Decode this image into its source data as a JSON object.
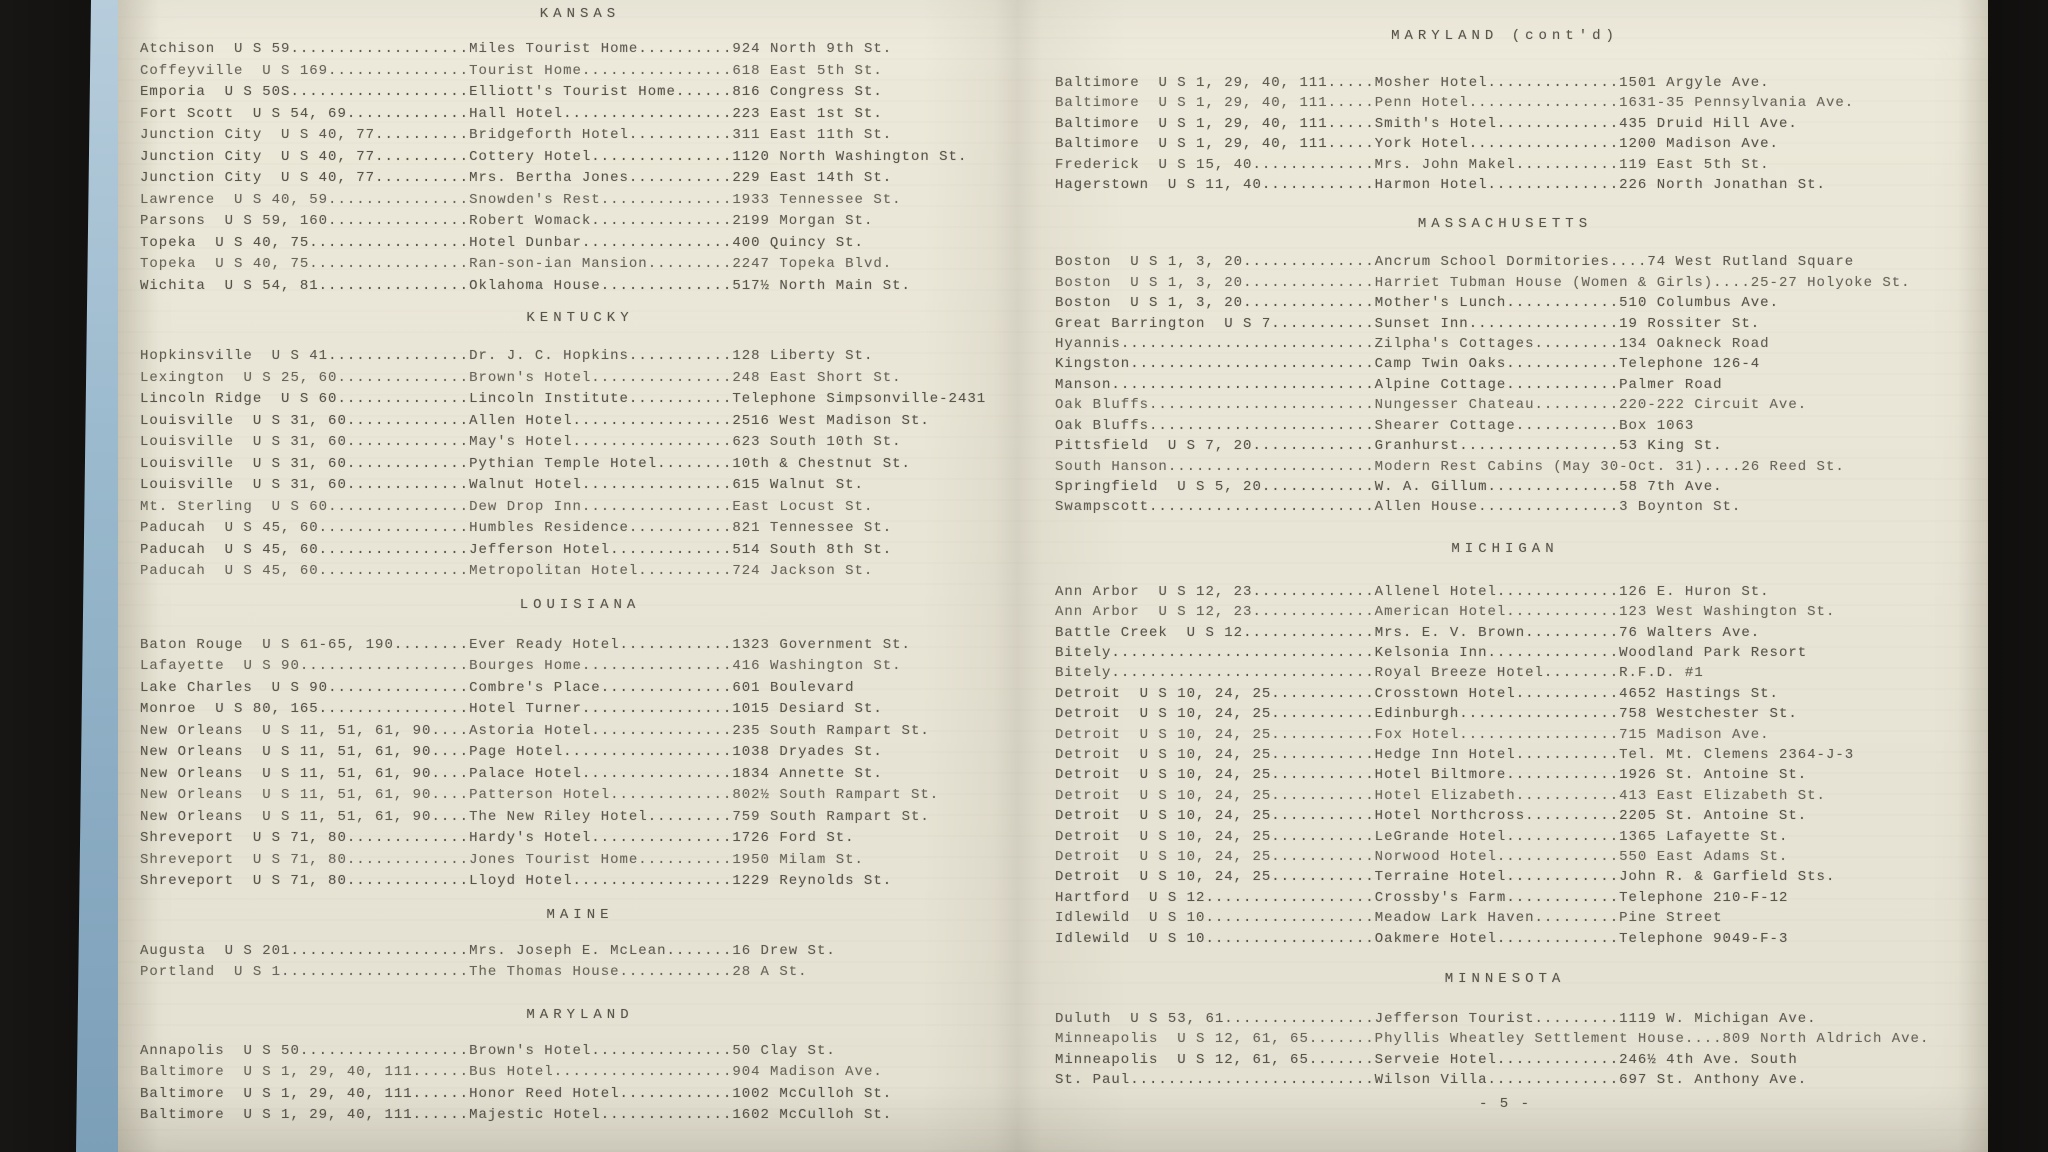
{
  "palette": {
    "background": "#0e0d0c",
    "paper": "#ece8d9",
    "ink": "#57544a",
    "book_edge_blue": "#8fb0c6"
  },
  "document": {
    "footer": "- 5 -",
    "left_page": {
      "sections": [
        {
          "title": "KANSAS",
          "entries": [
            {
              "city": "Atchison",
              "route": "U S 59",
              "name": "Miles Tourist Home",
              "address": "924 North 9th St."
            },
            {
              "city": "Coffeyville",
              "route": "U S 169",
              "name": "Tourist Home",
              "address": "618 East 5th St."
            },
            {
              "city": "Emporia",
              "route": "U S 50S",
              "name": "Elliott's Tourist Home",
              "address": "816 Congress St."
            },
            {
              "city": "Fort Scott",
              "route": "U S 54, 69",
              "name": "Hall Hotel",
              "address": "223 East 1st St."
            },
            {
              "city": "Junction City",
              "route": "U S 40, 77",
              "name": "Bridgeforth Hotel",
              "address": "311 East 11th St."
            },
            {
              "city": "Junction City",
              "route": "U S 40, 77",
              "name": "Cottery Hotel",
              "address": "1120 North Washington St."
            },
            {
              "city": "Junction City",
              "route": "U S 40, 77",
              "name": "Mrs. Bertha Jones",
              "address": "229 East 14th St."
            },
            {
              "city": "Lawrence",
              "route": "U S 40, 59",
              "name": "Snowden's Rest",
              "address": "1933 Tennessee St."
            },
            {
              "city": "Parsons",
              "route": "U S 59, 160",
              "name": "Robert Womack",
              "address": "2199 Morgan St."
            },
            {
              "city": "Topeka",
              "route": "U S 40, 75",
              "name": "Hotel Dunbar",
              "address": "400 Quincy St."
            },
            {
              "city": "Topeka",
              "route": "U S 40, 75",
              "name": "Ran-son-ian Mansion",
              "address": "2247 Topeka Blvd."
            },
            {
              "city": "Wichita",
              "route": "U S 54, 81",
              "name": "Oklahoma House",
              "address": "517½ North Main St."
            }
          ]
        },
        {
          "title": "KENTUCKY",
          "entries": [
            {
              "city": "Hopkinsville",
              "route": "U S 41",
              "name": "Dr. J. C. Hopkins",
              "address": "128 Liberty St."
            },
            {
              "city": "Lexington",
              "route": "U S 25, 60",
              "name": "Brown's Hotel",
              "address": "248 East Short St."
            },
            {
              "city": "Lincoln Ridge",
              "route": "U S 60",
              "name": "Lincoln Institute",
              "address": "Telephone Simpsonville-2431"
            },
            {
              "city": "Louisville",
              "route": "U S 31, 60",
              "name": "Allen Hotel",
              "address": "2516 West Madison St."
            },
            {
              "city": "Louisville",
              "route": "U S 31, 60",
              "name": "May's Hotel",
              "address": "623 South 10th St."
            },
            {
              "city": "Louisville",
              "route": "U S 31, 60",
              "name": "Pythian Temple Hotel",
              "address": "10th & Chestnut St."
            },
            {
              "city": "Louisville",
              "route": "U S 31, 60",
              "name": "Walnut Hotel",
              "address": "615 Walnut St."
            },
            {
              "city": "Mt. Sterling",
              "route": "U S 60",
              "name": "Dew Drop Inn",
              "address": "East Locust St."
            },
            {
              "city": "Paducah",
              "route": "U S 45, 60",
              "name": "Humbles Residence",
              "address": "821 Tennessee St."
            },
            {
              "city": "Paducah",
              "route": "U S 45, 60",
              "name": "Jefferson Hotel",
              "address": "514 South 8th St."
            },
            {
              "city": "Paducah",
              "route": "U S 45, 60",
              "name": "Metropolitan Hotel",
              "address": "724 Jackson St."
            }
          ]
        },
        {
          "title": "LOUISIANA",
          "entries": [
            {
              "city": "Baton Rouge",
              "route": "U S 61-65, 190",
              "name": "Ever Ready Hotel",
              "address": "1323 Government St."
            },
            {
              "city": "Lafayette",
              "route": "U S 90",
              "name": "Bourges Home",
              "address": "416 Washington St."
            },
            {
              "city": "Lake Charles",
              "route": "U S 90",
              "name": "Combre's Place",
              "address": "601 Boulevard"
            },
            {
              "city": "Monroe",
              "route": "U S 80, 165",
              "name": "Hotel Turner",
              "address": "1015 Desiard St."
            },
            {
              "city": "New Orleans",
              "route": "U S 11, 51, 61, 90",
              "name": "Astoria Hotel",
              "address": "235 South Rampart St."
            },
            {
              "city": "New Orleans",
              "route": "U S 11, 51, 61, 90",
              "name": "Page Hotel",
              "address": "1038 Dryades St."
            },
            {
              "city": "New Orleans",
              "route": "U S 11, 51, 61, 90",
              "name": "Palace Hotel",
              "address": "1834 Annette St."
            },
            {
              "city": "New Orleans",
              "route": "U S 11, 51, 61, 90",
              "name": "Patterson Hotel",
              "address": "802½ South Rampart St."
            },
            {
              "city": "New Orleans",
              "route": "U S 11, 51, 61, 90",
              "name": "The New Riley Hotel",
              "address": "759 South Rampart St."
            },
            {
              "city": "Shreveport",
              "route": "U S 71, 80",
              "name": "Hardy's Hotel",
              "address": "1726 Ford St."
            },
            {
              "city": "Shreveport",
              "route": "U S 71, 80",
              "name": "Jones Tourist Home",
              "address": "1950 Milam St."
            },
            {
              "city": "Shreveport",
              "route": "U S 71, 80",
              "name": "Lloyd Hotel",
              "address": "1229 Reynolds St."
            }
          ]
        },
        {
          "title": "MAINE",
          "entries": [
            {
              "city": "Augusta",
              "route": "U S 201",
              "name": "Mrs. Joseph E. McLean",
              "address": "16 Drew St."
            },
            {
              "city": "Portland",
              "route": "U S 1",
              "name": "The Thomas House",
              "address": "28 A St."
            }
          ]
        },
        {
          "title": "MARYLAND",
          "entries": [
            {
              "city": "Annapolis",
              "route": "U S 50",
              "name": "Brown's Hotel",
              "address": "50 Clay St."
            },
            {
              "city": "Baltimore",
              "route": "U S 1, 29, 40, 111",
              "name": "Bus Hotel",
              "address": "904 Madison Ave."
            },
            {
              "city": "Baltimore",
              "route": "U S 1, 29, 40, 111",
              "name": "Honor Reed Hotel",
              "address": "1002 McCulloh St."
            },
            {
              "city": "Baltimore",
              "route": "U S 1, 29, 40, 111",
              "name": "Majestic Hotel",
              "address": "1602 McCulloh St."
            }
          ]
        }
      ]
    },
    "right_page": {
      "sections": [
        {
          "title": "MARYLAND (cont'd)",
          "entries": [
            {
              "city": "Baltimore",
              "route": "U S 1, 29, 40, 111",
              "name": "Mosher Hotel",
              "address": "1501 Argyle Ave."
            },
            {
              "city": "Baltimore",
              "route": "U S 1, 29, 40, 111",
              "name": "Penn Hotel",
              "address": "1631-35 Pennsylvania Ave."
            },
            {
              "city": "Baltimore",
              "route": "U S 1, 29, 40, 111",
              "name": "Smith's Hotel",
              "address": "435 Druid Hill Ave."
            },
            {
              "city": "Baltimore",
              "route": "U S 1, 29, 40, 111",
              "name": "York Hotel",
              "address": "1200 Madison Ave."
            },
            {
              "city": "Frederick",
              "route": "U S 15, 40",
              "name": "Mrs. John Makel",
              "address": "119 East 5th St."
            },
            {
              "city": "Hagerstown",
              "route": "U S 11, 40",
              "name": "Harmon Hotel",
              "address": "226 North Jonathan St."
            }
          ]
        },
        {
          "title": "MASSACHUSETTS",
          "entries": [
            {
              "city": "Boston",
              "route": "U S 1, 3, 20",
              "name": "Ancrum School Dormitories",
              "address": "74 West Rutland Square"
            },
            {
              "city": "Boston",
              "route": "U S 1, 3, 20",
              "name": "Harriet Tubman House (Women & Girls)",
              "address": "25-27 Holyoke St."
            },
            {
              "city": "Boston",
              "route": "U S 1, 3, 20",
              "name": "Mother's Lunch",
              "address": "510 Columbus Ave."
            },
            {
              "city": "Great Barrington",
              "route": "U S 7",
              "name": "Sunset Inn",
              "address": "19 Rossiter St."
            },
            {
              "city": "Hyannis",
              "route": "",
              "name": "Zilpha's Cottages",
              "address": "134 Oakneck Road"
            },
            {
              "city": "Kingston",
              "route": "",
              "name": "Camp Twin Oaks",
              "address": "Telephone 126-4"
            },
            {
              "city": "Manson",
              "route": "",
              "name": "Alpine Cottage",
              "address": "Palmer Road"
            },
            {
              "city": "Oak Bluffs",
              "route": "",
              "name": "Nungesser Chateau",
              "address": "220-222 Circuit Ave."
            },
            {
              "city": "Oak Bluffs",
              "route": "",
              "name": "Shearer Cottage",
              "address": "Box 1063"
            },
            {
              "city": "Pittsfield",
              "route": "U S 7, 20",
              "name": "Granhurst",
              "address": "53 King St."
            },
            {
              "city": "South Hanson",
              "route": "",
              "name": "Modern Rest Cabins (May 30-Oct. 31)",
              "address": "26 Reed St."
            },
            {
              "city": "Springfield",
              "route": "U S 5, 20",
              "name": "W. A. Gillum",
              "address": "58 7th Ave."
            },
            {
              "city": "Swampscott",
              "route": "",
              "name": "Allen House",
              "address": "3 Boynton St."
            }
          ]
        },
        {
          "title": "MICHIGAN",
          "entries": [
            {
              "city": "Ann Arbor",
              "route": "U S 12, 23",
              "name": "Allenel Hotel",
              "address": "126 E. Huron St."
            },
            {
              "city": "Ann Arbor",
              "route": "U S 12, 23",
              "name": "American Hotel",
              "address": "123 West Washington St."
            },
            {
              "city": "Battle Creek",
              "route": "U S 12",
              "name": "Mrs. E. V. Brown",
              "address": "76 Walters Ave."
            },
            {
              "city": "Bitely",
              "route": "",
              "name": "Kelsonia Inn",
              "address": "Woodland Park Resort"
            },
            {
              "city": "Bitely",
              "route": "",
              "name": "Royal Breeze Hotel",
              "address": "R.F.D. #1"
            },
            {
              "city": "Detroit",
              "route": "U S 10, 24, 25",
              "name": "Crosstown Hotel",
              "address": "4652 Hastings St."
            },
            {
              "city": "Detroit",
              "route": "U S 10, 24, 25",
              "name": "Edinburgh",
              "address": "758 Westchester St."
            },
            {
              "city": "Detroit",
              "route": "U S 10, 24, 25",
              "name": "Fox Hotel",
              "address": "715 Madison Ave."
            },
            {
              "city": "Detroit",
              "route": "U S 10, 24, 25",
              "name": "Hedge Inn Hotel",
              "address": "Tel. Mt. Clemens 2364-J-3"
            },
            {
              "city": "Detroit",
              "route": "U S 10, 24, 25",
              "name": "Hotel Biltmore",
              "address": "1926 St. Antoine St."
            },
            {
              "city": "Detroit",
              "route": "U S 10, 24, 25",
              "name": "Hotel Elizabeth",
              "address": "413 East Elizabeth St."
            },
            {
              "city": "Detroit",
              "route": "U S 10, 24, 25",
              "name": "Hotel Northcross",
              "address": "2205 St. Antoine St."
            },
            {
              "city": "Detroit",
              "route": "U S 10, 24, 25",
              "name": "LeGrande Hotel",
              "address": "1365 Lafayette St."
            },
            {
              "city": "Detroit",
              "route": "U S 10, 24, 25",
              "name": "Norwood Hotel",
              "address": "550 East Adams St."
            },
            {
              "city": "Detroit",
              "route": "U S 10, 24, 25",
              "name": "Terraine Hotel",
              "address": "John R. & Garfield Sts."
            },
            {
              "city": "Hartford",
              "route": "U S 12",
              "name": "Crossby's Farm",
              "address": "Telephone 210-F-12"
            },
            {
              "city": "Idlewild",
              "route": "U S 10",
              "name": "Meadow Lark Haven",
              "address": "Pine Street"
            },
            {
              "city": "Idlewild",
              "route": "U S 10",
              "name": "Oakmere Hotel",
              "address": "Telephone 9049-F-3"
            }
          ]
        },
        {
          "title": "MINNESOTA",
          "entries": [
            {
              "city": "Duluth",
              "route": "U S 53, 61",
              "name": "Jefferson Tourist",
              "address": "1119 W. Michigan Ave."
            },
            {
              "city": "Minneapolis",
              "route": "U S 12, 61, 65",
              "name": "Phyllis Wheatley Settlement House",
              "address": "809 North Aldrich Ave."
            },
            {
              "city": "Minneapolis",
              "route": "U S 12, 61, 65",
              "name": "Serveie Hotel",
              "address": "246½ 4th Ave. South"
            },
            {
              "city": "St. Paul",
              "route": "",
              "name": "Wilson Villa",
              "address": "697 St. Anthony Ave."
            }
          ]
        }
      ]
    }
  }
}
